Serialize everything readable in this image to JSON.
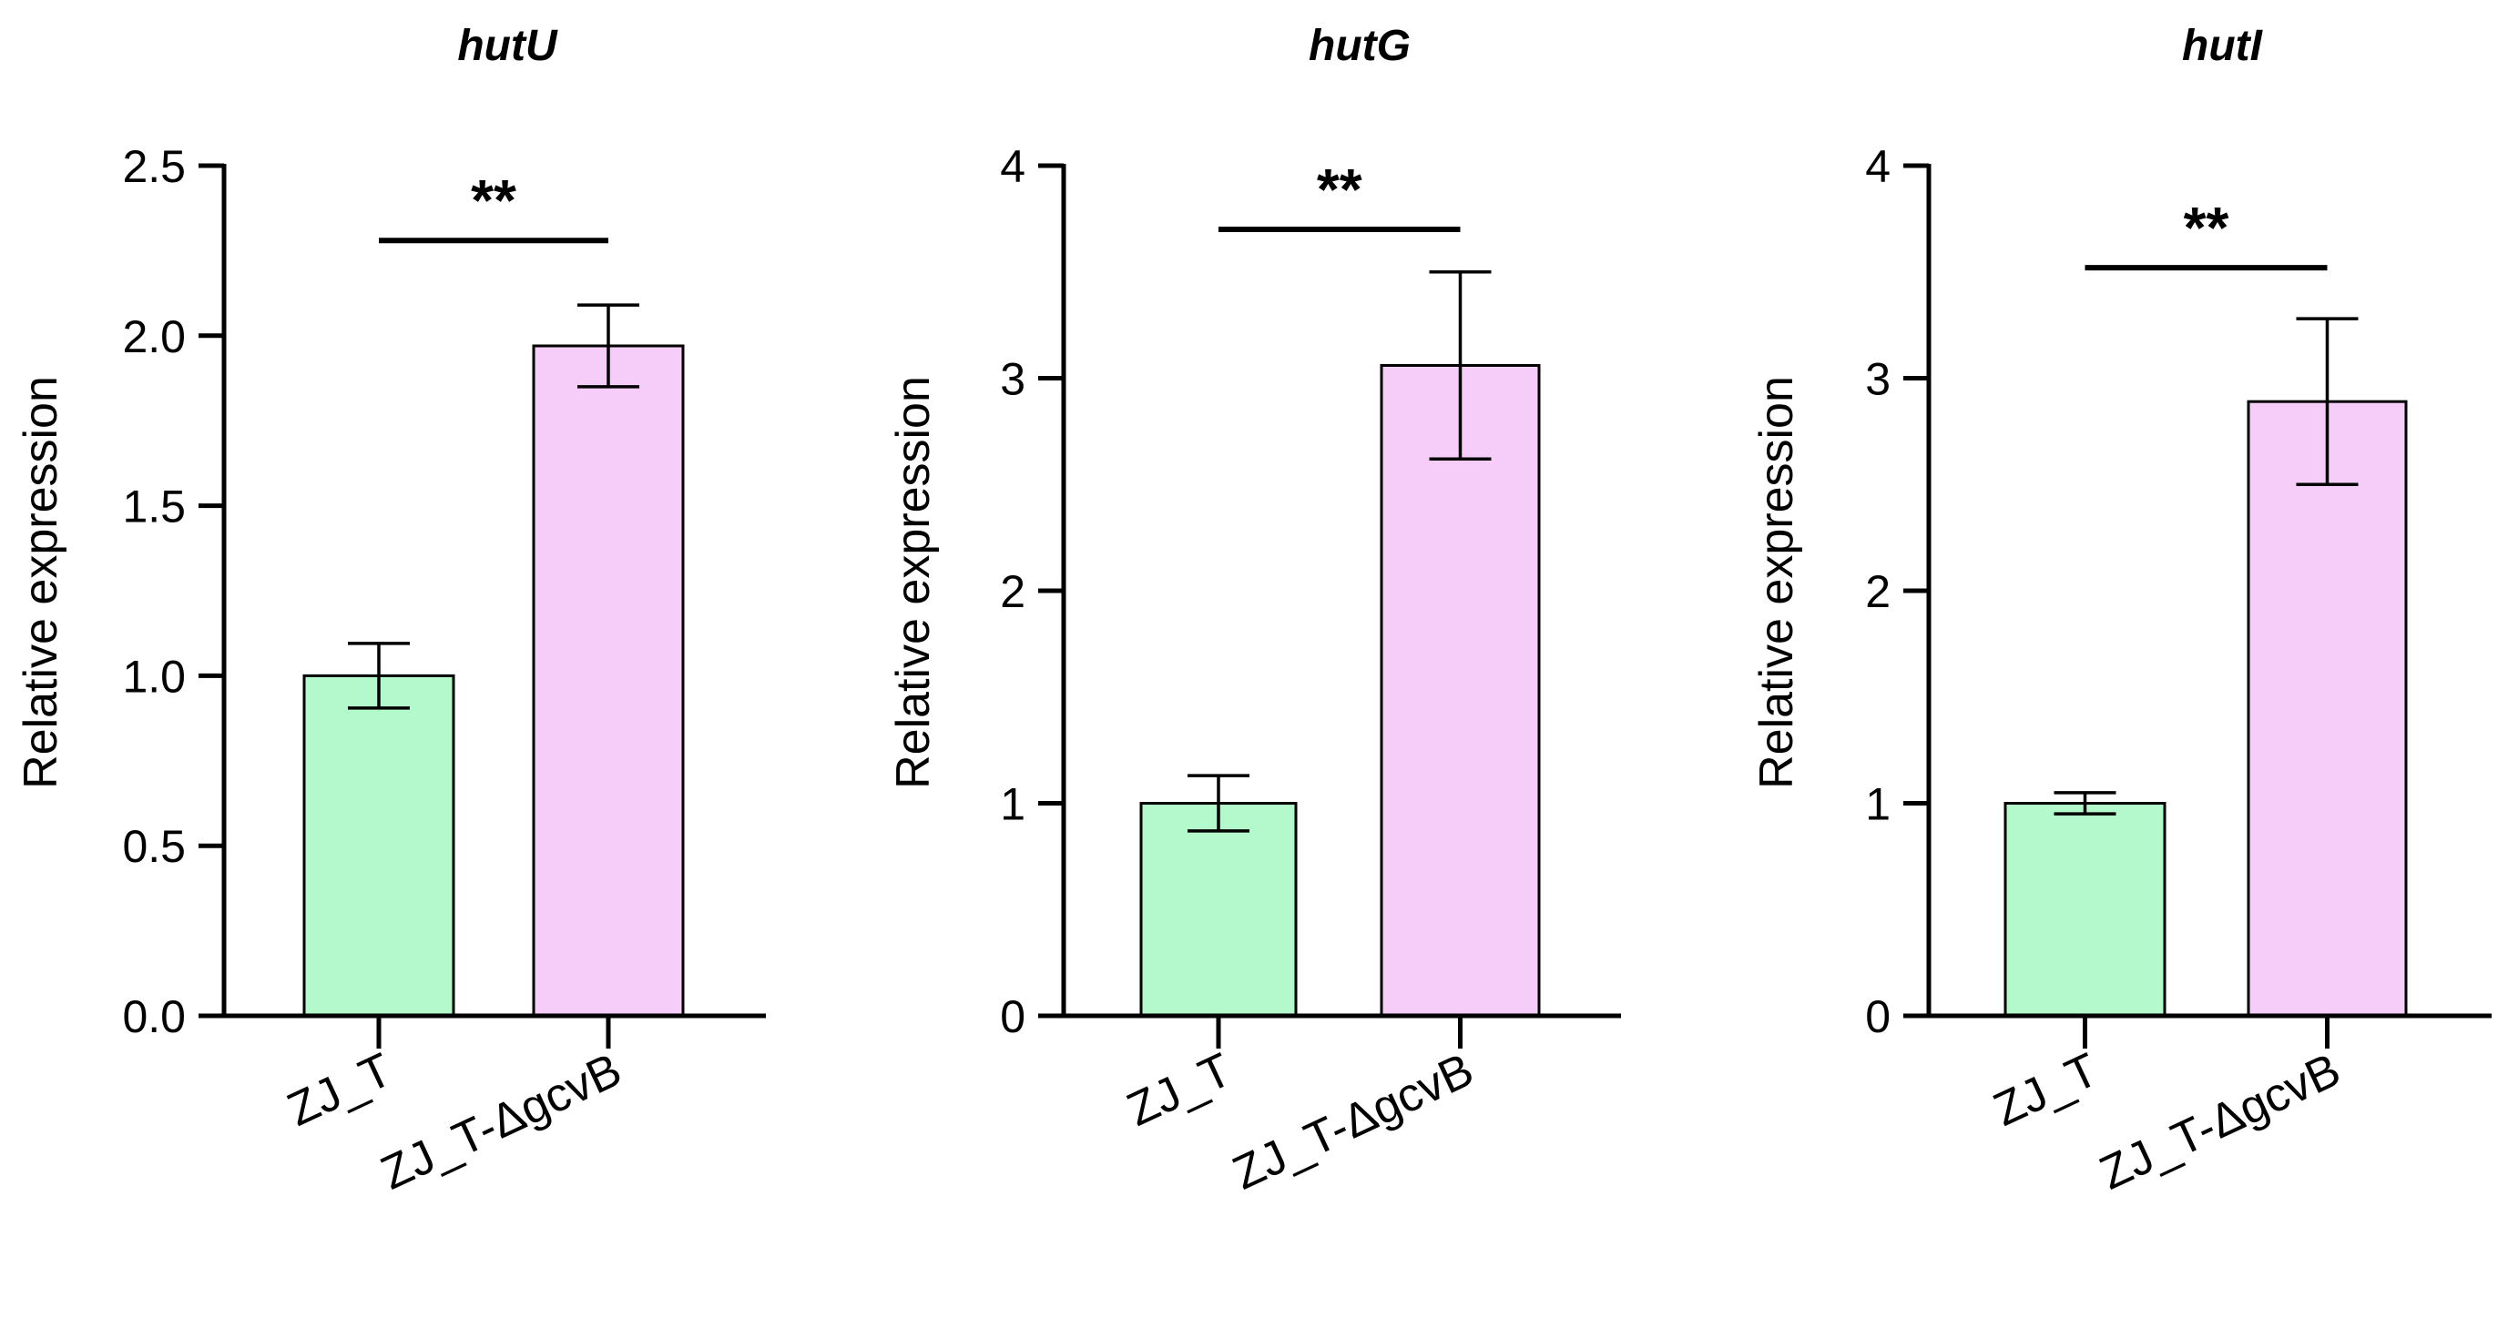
{
  "chart_data": [
    {
      "type": "bar",
      "title": "hutU",
      "ylabel": "Relative expression",
      "categories": [
        "ZJ_T",
        "ZJ_T-ΔgcvB"
      ],
      "values": [
        1.0,
        1.97
      ],
      "errors": [
        0.095,
        0.12
      ],
      "colors": [
        "#b3f9cb",
        "#f5cdf8"
      ],
      "ylim": [
        0,
        2.5
      ],
      "yticks": [
        0,
        0.5,
        1.0,
        1.5,
        2.0,
        2.5
      ],
      "ytick_labels": [
        "0.0",
        "0.5",
        "1.0",
        "1.5",
        "2.0",
        "2.5"
      ],
      "significance": "**",
      "sig_bar_y": 2.28,
      "sig_text_y": 2.38
    },
    {
      "type": "bar",
      "title": "hutG",
      "ylabel": "Relative expression",
      "categories": [
        "ZJ_T",
        "ZJ_T-ΔgcvB"
      ],
      "values": [
        1.0,
        3.06
      ],
      "errors": [
        0.13,
        0.44
      ],
      "colors": [
        "#b3f9cb",
        "#f5cdf8"
      ],
      "ylim": [
        0,
        4
      ],
      "yticks": [
        0,
        1,
        2,
        3,
        4
      ],
      "ytick_labels": [
        "0",
        "1",
        "2",
        "3",
        "4"
      ],
      "significance": "**",
      "sig_bar_y": 3.7,
      "sig_text_y": 3.85
    },
    {
      "type": "bar",
      "title": "hutI",
      "ylabel": "Relative expression",
      "categories": [
        "ZJ_T",
        "ZJ_T-ΔgcvB"
      ],
      "values": [
        1.0,
        2.89
      ],
      "errors": [
        0.05,
        0.39
      ],
      "colors": [
        "#b3f9cb",
        "#f5cdf8"
      ],
      "ylim": [
        0,
        4
      ],
      "yticks": [
        0,
        1,
        2,
        3,
        4
      ],
      "ytick_labels": [
        "0",
        "1",
        "2",
        "3",
        "4"
      ],
      "significance": "**",
      "sig_bar_y": 3.52,
      "sig_text_y": 3.67
    }
  ]
}
